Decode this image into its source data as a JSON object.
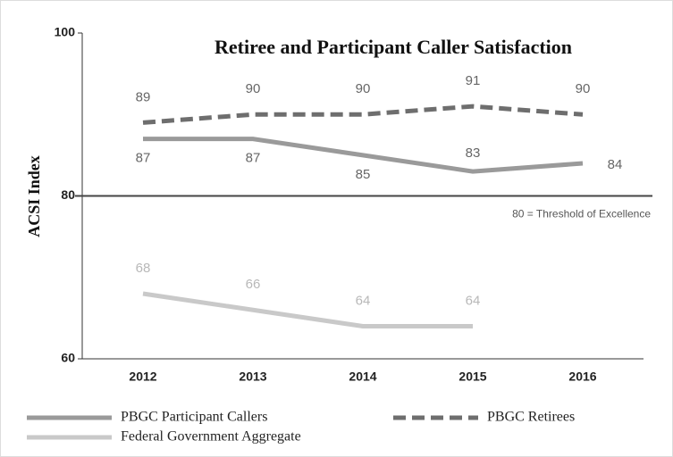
{
  "chart_data": {
    "type": "line",
    "title": "Retiree and Participant Caller Satisfaction",
    "y_label": "ACSI Index",
    "categories": [
      "2012",
      "2013",
      "2014",
      "2015",
      "2016"
    ],
    "series": [
      {
        "name": "PBGC Participant Callers",
        "color": "#9a9a9a",
        "dash": false,
        "values": [
          87,
          87,
          85,
          83,
          84
        ]
      },
      {
        "name": "PBGC Retirees",
        "color": "#6e6e6e",
        "dash": true,
        "values": [
          89,
          90,
          90,
          91,
          90
        ]
      },
      {
        "name": "Federal Government Aggregate",
        "color": "#c9c9c9",
        "dash": false,
        "values": [
          68,
          66,
          64,
          64,
          null
        ]
      }
    ],
    "ylim": [
      60,
      100
    ],
    "yticks": [
      60,
      80,
      100
    ],
    "threshold": {
      "value": 80,
      "text": "80 = Threshold of Excellence"
    },
    "legend": "bottom",
    "grid": false
  }
}
